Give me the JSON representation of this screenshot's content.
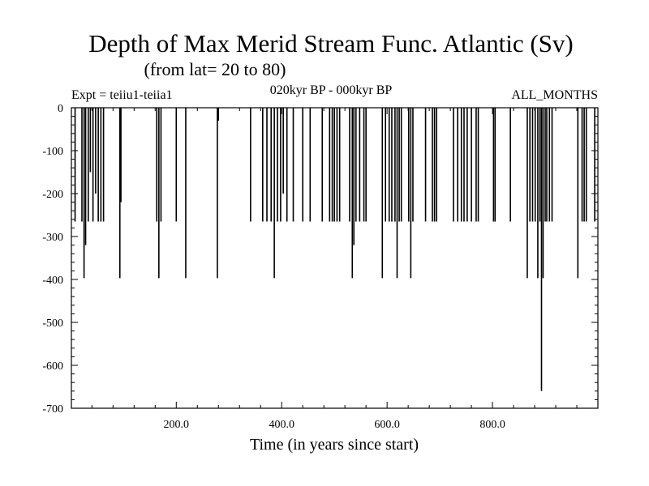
{
  "chart_data": {
    "type": "bar",
    "title": "Depth of Max Merid Stream Func. Atlantic (Sv)",
    "subtitle": "(from lat= 20 to 80)",
    "annotations": {
      "left": "Expt = teiiu1-teiia1",
      "center": "020kyr BP - 000kyr BP",
      "right": "ALL_MONTHS"
    },
    "xlabel": "Time (in years since start)",
    "ylabel": "",
    "xlim": [
      1,
      1000
    ],
    "ylim": [
      -700,
      0
    ],
    "x_ticks": [
      200,
      400,
      600,
      800
    ],
    "x_tick_labels": [
      "200.0",
      "400.0",
      "600.0",
      "800.0"
    ],
    "y_ticks": [
      0,
      -100,
      -200,
      -300,
      -400,
      -500,
      -600,
      -700
    ],
    "y_tick_labels": [
      "0",
      "-100",
      "-200",
      "-300",
      "-400",
      "-500",
      "-600",
      "-700"
    ],
    "grid": false,
    "legend": "none",
    "line_color": "#000000",
    "spikes": [
      {
        "x": 8,
        "y": -265
      },
      {
        "x": 21,
        "y": -265
      },
      {
        "x": 25,
        "y": -397
      },
      {
        "x": 28,
        "y": -320
      },
      {
        "x": 33,
        "y": -265
      },
      {
        "x": 37,
        "y": -150
      },
      {
        "x": 42,
        "y": -265
      },
      {
        "x": 47,
        "y": -200
      },
      {
        "x": 52,
        "y": -265
      },
      {
        "x": 57,
        "y": -265
      },
      {
        "x": 62,
        "y": -265
      },
      {
        "x": 93,
        "y": -397
      },
      {
        "x": 95,
        "y": -220
      },
      {
        "x": 163,
        "y": -265
      },
      {
        "x": 167,
        "y": -397
      },
      {
        "x": 171,
        "y": -265
      },
      {
        "x": 200,
        "y": -265
      },
      {
        "x": 218,
        "y": -397
      },
      {
        "x": 278,
        "y": -397
      },
      {
        "x": 280,
        "y": -30
      },
      {
        "x": 341,
        "y": -265
      },
      {
        "x": 364,
        "y": -265
      },
      {
        "x": 372,
        "y": -265
      },
      {
        "x": 380,
        "y": -265
      },
      {
        "x": 386,
        "y": -397
      },
      {
        "x": 392,
        "y": -265
      },
      {
        "x": 398,
        "y": -265
      },
      {
        "x": 403,
        "y": -200
      },
      {
        "x": 410,
        "y": -265
      },
      {
        "x": 422,
        "y": -265
      },
      {
        "x": 440,
        "y": -265
      },
      {
        "x": 454,
        "y": -265
      },
      {
        "x": 477,
        "y": -265
      },
      {
        "x": 491,
        "y": -265
      },
      {
        "x": 496,
        "y": -265
      },
      {
        "x": 500,
        "y": -265
      },
      {
        "x": 505,
        "y": -265
      },
      {
        "x": 510,
        "y": -265
      },
      {
        "x": 529,
        "y": -265
      },
      {
        "x": 534,
        "y": -397
      },
      {
        "x": 537,
        "y": -320
      },
      {
        "x": 541,
        "y": -265
      },
      {
        "x": 548,
        "y": -265
      },
      {
        "x": 556,
        "y": -265
      },
      {
        "x": 560,
        "y": -265
      },
      {
        "x": 591,
        "y": -397
      },
      {
        "x": 597,
        "y": -265
      },
      {
        "x": 604,
        "y": -265
      },
      {
        "x": 609,
        "y": -265
      },
      {
        "x": 615,
        "y": -265
      },
      {
        "x": 619,
        "y": -397
      },
      {
        "x": 623,
        "y": -265
      },
      {
        "x": 627,
        "y": -265
      },
      {
        "x": 641,
        "y": -265
      },
      {
        "x": 645,
        "y": -397
      },
      {
        "x": 649,
        "y": -265
      },
      {
        "x": 673,
        "y": -265
      },
      {
        "x": 686,
        "y": -265
      },
      {
        "x": 690,
        "y": -265
      },
      {
        "x": 694,
        "y": -265
      },
      {
        "x": 726,
        "y": -265
      },
      {
        "x": 734,
        "y": -265
      },
      {
        "x": 741,
        "y": -265
      },
      {
        "x": 746,
        "y": -265
      },
      {
        "x": 752,
        "y": -265
      },
      {
        "x": 760,
        "y": -265
      },
      {
        "x": 769,
        "y": -265
      },
      {
        "x": 773,
        "y": -265
      },
      {
        "x": 802,
        "y": -265
      },
      {
        "x": 805,
        "y": -265
      },
      {
        "x": 834,
        "y": -265
      },
      {
        "x": 866,
        "y": -397
      },
      {
        "x": 871,
        "y": -265
      },
      {
        "x": 876,
        "y": -265
      },
      {
        "x": 881,
        "y": -265
      },
      {
        "x": 886,
        "y": -397
      },
      {
        "x": 890,
        "y": -265
      },
      {
        "x": 893,
        "y": -660
      },
      {
        "x": 896,
        "y": -397
      },
      {
        "x": 900,
        "y": -265
      },
      {
        "x": 903,
        "y": -265
      },
      {
        "x": 908,
        "y": -265
      },
      {
        "x": 913,
        "y": -265
      },
      {
        "x": 962,
        "y": -397
      },
      {
        "x": 970,
        "y": -265
      },
      {
        "x": 974,
        "y": -265
      },
      {
        "x": 978,
        "y": -265
      },
      {
        "x": 994,
        "y": -265
      }
    ]
  }
}
